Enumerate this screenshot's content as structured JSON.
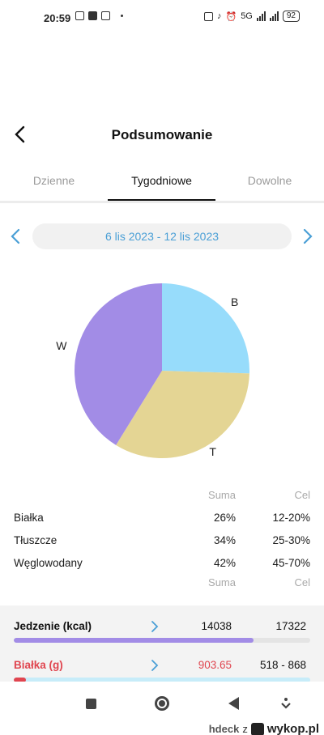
{
  "status_bar": {
    "time": "20:59",
    "signal_label": "5G",
    "battery": "92"
  },
  "header": {
    "title": "Podsumowanie",
    "back_icon": "chevron-left-icon"
  },
  "tabs": [
    {
      "label": "Dzienne",
      "active": false
    },
    {
      "label": "Tygodniowe",
      "active": true
    },
    {
      "label": "Dowolne",
      "active": false
    }
  ],
  "date_range": {
    "label": "6 lis 2023  -  12 lis 2023",
    "prev_icon": "chevron-left-icon",
    "next_icon": "chevron-right-icon"
  },
  "chart_data": {
    "type": "pie",
    "title": "",
    "slices": [
      {
        "label": "B",
        "value": 26,
        "color": "#97dcfb"
      },
      {
        "label": "T",
        "value": 34,
        "color": "#e4d594"
      },
      {
        "label": "W",
        "value": 42,
        "color": "#a28ce6"
      }
    ]
  },
  "macros": {
    "col_suma": "Suma",
    "col_cel": "Cel",
    "rows": [
      {
        "name": "Białka",
        "suma": "26%",
        "cel": "12-20%"
      },
      {
        "name": "Tłuszcze",
        "suma": "34%",
        "cel": "25-30%"
      },
      {
        "name": "Węglowodany",
        "suma": "42%",
        "cel": "45-70%"
      }
    ]
  },
  "summary": {
    "col_suma": "Suma",
    "col_cel": "Cel",
    "rows": [
      {
        "label": "Jedzenie (kcal)",
        "value": "14038",
        "goal": "17322",
        "progress": 0.81,
        "bar_color": "#a28ce6",
        "warn": false
      },
      {
        "label": "Białka (g)",
        "value": "903.65",
        "goal": "518 - 868",
        "progress": 0.04,
        "bar_color": "#e0454f",
        "warn": true
      }
    ]
  },
  "watermark": {
    "user": "hdeck",
    "sep": "z",
    "site": "wykop.pl"
  }
}
